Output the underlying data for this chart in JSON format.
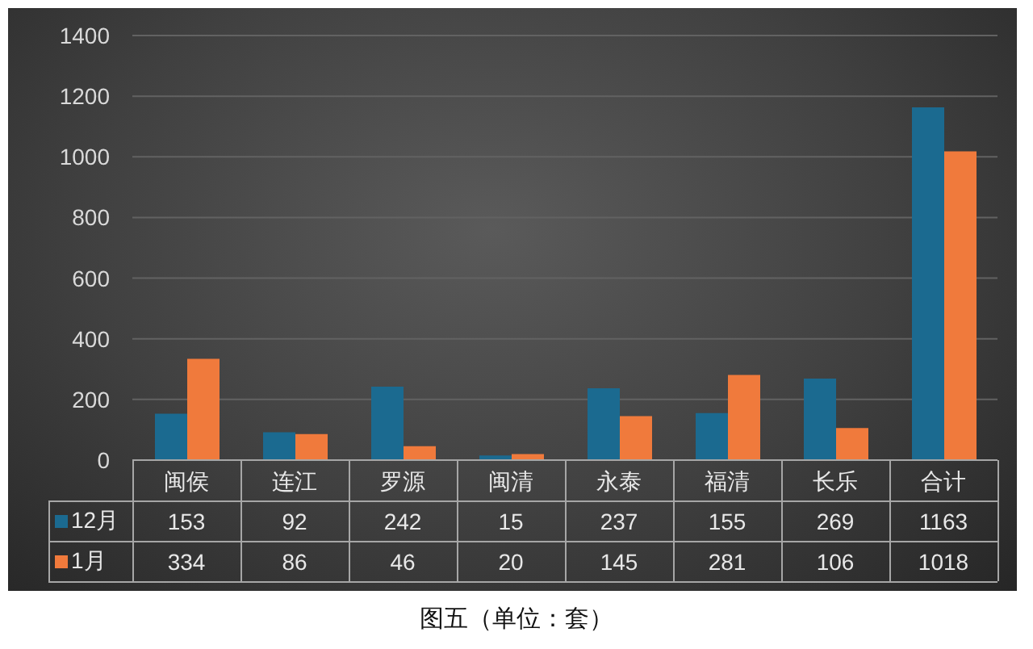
{
  "chart_data": {
    "type": "bar",
    "categories": [
      "闽侯",
      "连江",
      "罗源",
      "闽清",
      "永泰",
      "福清",
      "长乐",
      "合计"
    ],
    "series": [
      {
        "name": "12月",
        "color": "#1b6a90",
        "values": [
          153,
          92,
          242,
          15,
          237,
          155,
          269,
          1163
        ]
      },
      {
        "name": "1月",
        "color": "#f07a3c",
        "values": [
          334,
          86,
          46,
          20,
          145,
          281,
          106,
          1018
        ]
      }
    ],
    "ylim": [
      0,
      1400
    ],
    "yticks": [
      0,
      200,
      400,
      600,
      800,
      1000,
      1200,
      1400
    ],
    "grid": "y",
    "legend": "bottom",
    "data_labels": true,
    "annotations": [
      "图五（单位：套）"
    ]
  }
}
